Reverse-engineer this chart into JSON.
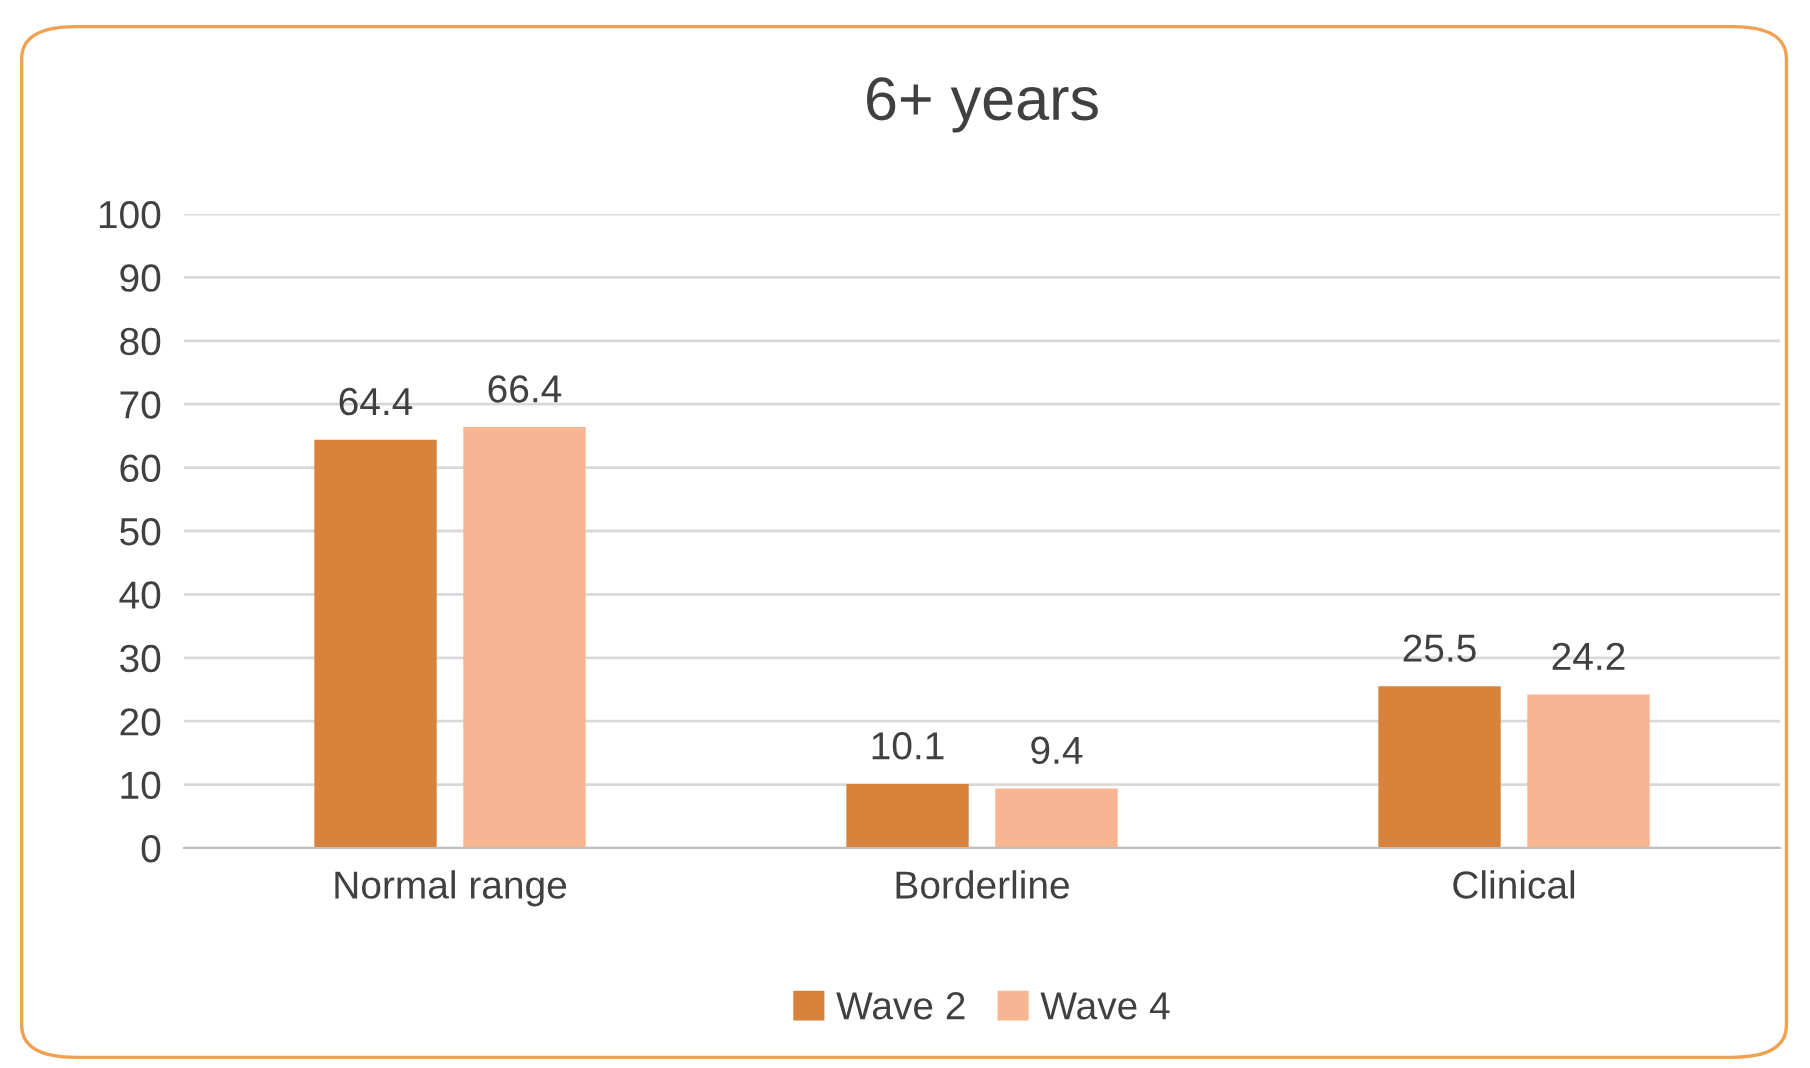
{
  "chart_data": {
    "type": "bar",
    "title": "6+ years",
    "categories": [
      "Normal range",
      "Borderline",
      "Clinical"
    ],
    "series": [
      {
        "name": "Wave 2",
        "color": "#d9823b",
        "values": [
          64.4,
          10.1,
          25.5
        ]
      },
      {
        "name": "Wave 4",
        "color": "#f8b592",
        "values": [
          66.4,
          9.4,
          24.2
        ]
      }
    ],
    "ylim": [
      0,
      100
    ],
    "yticks": [
      0,
      10,
      20,
      30,
      40,
      50,
      60,
      70,
      80,
      90,
      100
    ],
    "grid": "y",
    "legend": "bottom",
    "data_labels": true
  }
}
